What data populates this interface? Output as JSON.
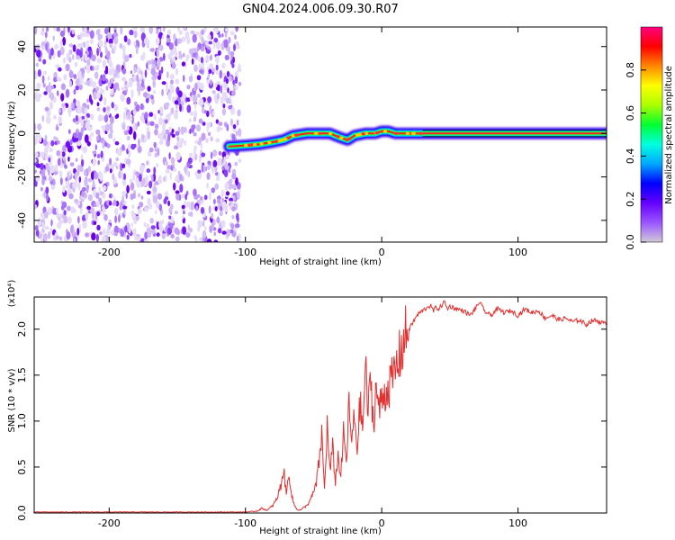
{
  "title": "GN04.2024.006.09.30.R07",
  "chart_data": [
    {
      "type": "heatmap",
      "name": "spectrogram",
      "xlabel": "Height of straight line (km)",
      "ylabel": "Frequency (Hz)",
      "xlim": [
        -255,
        165
      ],
      "ylim": [
        -50,
        49
      ],
      "xticks": [
        -200,
        -100,
        0,
        100
      ],
      "yticks": [
        -40,
        -20,
        0,
        20,
        40
      ],
      "grid": false,
      "noise_region_x": [
        -255,
        -108
      ],
      "signal_track": {
        "x": [
          -112,
          -100,
          -90,
          -80,
          -72,
          -65,
          -55,
          -45,
          -38,
          -30,
          -25,
          -20,
          -12,
          -5,
          0,
          5,
          10,
          20,
          30,
          50,
          80,
          120,
          165
        ],
        "y": [
          -6,
          -5.5,
          -5,
          -4,
          -3,
          -1,
          0,
          0,
          0,
          -2,
          -3,
          -1,
          0,
          0,
          1,
          1,
          0,
          0,
          0,
          0,
          0,
          0,
          0
        ]
      },
      "colorbar": {
        "label": "Normalized spectral amplitude",
        "range": [
          0.0,
          1.0
        ],
        "ticks": [
          0.0,
          0.2,
          0.4,
          0.6,
          0.8
        ],
        "colors": [
          "#cfc9d6",
          "#9a55ff",
          "#6600ff",
          "#0000ff",
          "#00a8ff",
          "#00ffe0",
          "#00ff30",
          "#aaff00",
          "#ffff00",
          "#ff8800",
          "#ff0000",
          "#ff0080"
        ]
      }
    },
    {
      "type": "line",
      "name": "snr",
      "xlabel": "Height of straight line (km)",
      "ylabel": "SNR (10 * v/v)",
      "scale_label": "(x10⁴)",
      "xlim": [
        -255,
        165
      ],
      "ylim": [
        0.0,
        2.35
      ],
      "xticks": [
        -200,
        -100,
        0,
        100
      ],
      "yticks": [
        0.0,
        0.5,
        1.0,
        1.5,
        2.0
      ],
      "ytick_labels": [
        "0.0",
        "0.5",
        "1.0",
        "1.5",
        "2.0"
      ],
      "grid": false,
      "color": "#e03030",
      "series": [
        {
          "x": [
            -255,
            -200,
            -150,
            -100,
            -92,
            -88,
            -84,
            -80,
            -77,
            -74,
            -72,
            -70,
            -68,
            -66,
            -64,
            -62,
            -60,
            -58,
            -55,
            -52,
            -50,
            -48,
            -46,
            -44,
            -42,
            -40,
            -38,
            -36,
            -34,
            -32,
            -30,
            -28,
            -26,
            -24,
            -22,
            -20,
            -18,
            -16,
            -14,
            -12,
            -10,
            -8,
            -6,
            -4,
            -2,
            0,
            2,
            4,
            6,
            8,
            10,
            12,
            14,
            16,
            18,
            20,
            22,
            24,
            26,
            28,
            30,
            32,
            34,
            36,
            38,
            40,
            42,
            44,
            46,
            48,
            50,
            55,
            60,
            65,
            70,
            72,
            75,
            80,
            85,
            90,
            95,
            100,
            105,
            110,
            115,
            120,
            125,
            130,
            135,
            140,
            145,
            150,
            155,
            160,
            165
          ],
          "y": [
            0.01,
            0.01,
            0.01,
            0.01,
            0.02,
            0.05,
            0.03,
            0.08,
            0.15,
            0.3,
            0.48,
            0.2,
            0.45,
            0.18,
            0.08,
            0.04,
            0.03,
            0.05,
            0.08,
            0.15,
            0.22,
            0.32,
            0.55,
            0.85,
            0.25,
            0.95,
            0.45,
            0.7,
            0.35,
            0.62,
            0.4,
            0.85,
            0.55,
            1.15,
            0.75,
            1.05,
            0.7,
            1.2,
            0.9,
            1.6,
            1.1,
            1.45,
            0.95,
            1.4,
            1.1,
            1.25,
            1.3,
            1.35,
            1.4,
            1.45,
            1.55,
            1.65,
            1.75,
            1.85,
            1.95,
            2.0,
            2.05,
            2.1,
            2.15,
            2.18,
            2.2,
            2.22,
            2.25,
            2.25,
            2.2,
            2.24,
            2.22,
            2.26,
            2.3,
            2.22,
            2.25,
            2.22,
            2.2,
            2.15,
            2.25,
            2.3,
            2.2,
            2.15,
            2.22,
            2.18,
            2.2,
            2.15,
            2.22,
            2.18,
            2.2,
            2.12,
            2.15,
            2.1,
            2.12,
            2.08,
            2.1,
            2.05,
            2.1,
            2.08,
            2.05
          ]
        }
      ]
    }
  ]
}
